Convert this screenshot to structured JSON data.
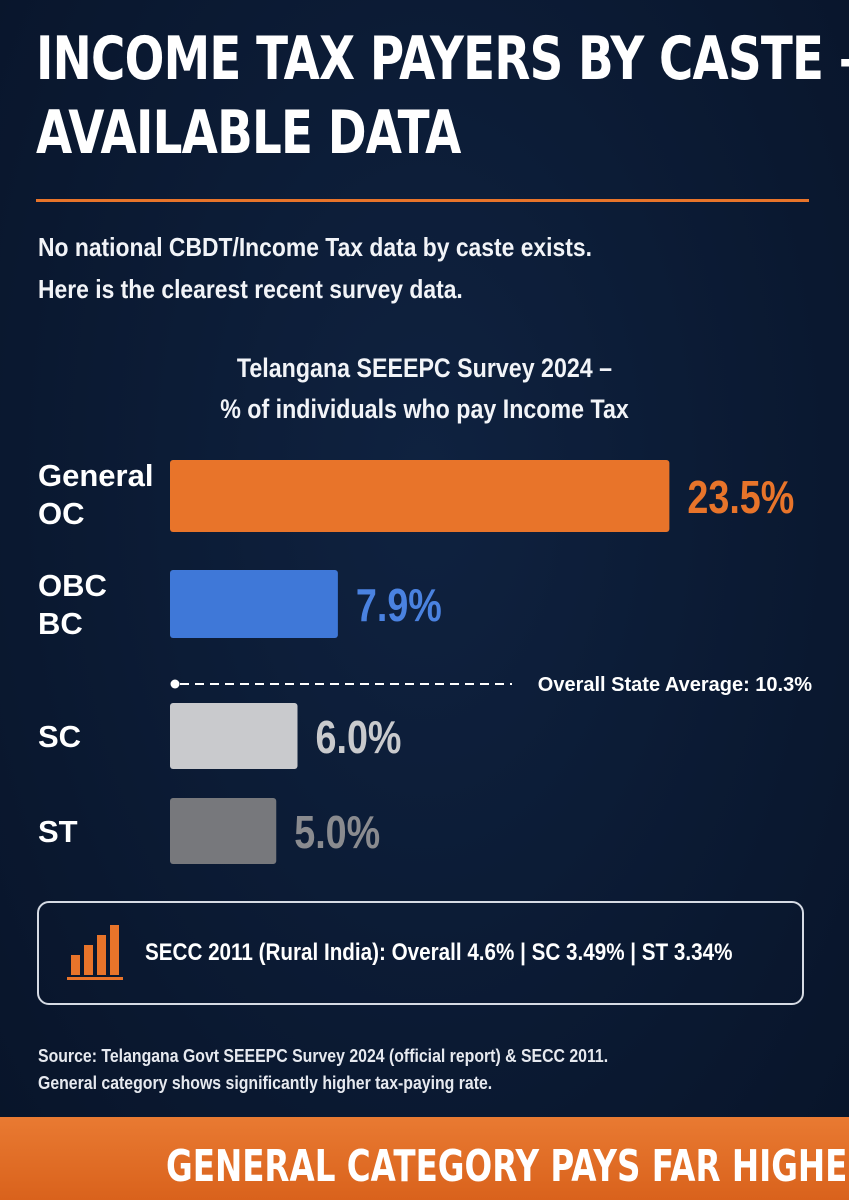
{
  "title": {
    "line1": "INCOME TAX PAYERS BY CASTE –",
    "line2": "AVAILABLE DATA"
  },
  "intro": {
    "line1": "No national CBDT/Income Tax data by caste exists.",
    "line2": "Here is the clearest recent survey data."
  },
  "chart_data": {
    "type": "bar",
    "orientation": "horizontal",
    "title": "Telangana SEEEPC Survey 2024 – % of individuals who pay Income Tax",
    "title_lines": [
      "Telangana SEEEPC Survey 2024 –",
      "% of individuals who pay Income Tax"
    ],
    "categories": [
      {
        "line1": "General",
        "line2": "OC"
      },
      {
        "line1": "OBC",
        "line2": "BC"
      },
      {
        "line1": "SC",
        "line2": ""
      },
      {
        "line1": "ST",
        "line2": ""
      }
    ],
    "values": [
      23.5,
      7.9,
      6.0,
      5.0
    ],
    "value_labels": [
      "23.5%",
      "7.9%",
      "6.0%",
      "5.0%"
    ],
    "bar_colors": [
      "#e8742a",
      "#3f78d8",
      "#c9cacd",
      "#77787c"
    ],
    "label_colors": [
      "#e8742a",
      "#4a82e0",
      "#c9cacd",
      "#8a8b8f"
    ],
    "reference_line": {
      "value": 10.3,
      "label": "Overall State Average: 10.3%",
      "style": "dashed"
    },
    "grid": false,
    "legend": "none"
  },
  "secc": {
    "icon": "bar-chart-icon",
    "text": "SECC 2011 (Rural India): Overall 4.6% | SC 3.49% | ST 3.34%"
  },
  "source": {
    "line1": "Source: Telangana Govt SEEEPC Survey 2024 (official report) & SECC 2011.",
    "line2": "General category shows significantly higher tax-paying rate."
  },
  "footer": {
    "text": "GENERAL CATEGORY PAYS FAR HIGHER INCOME TAX"
  },
  "colors": {
    "background": "#0b1a33",
    "accent": "#e8742a"
  }
}
